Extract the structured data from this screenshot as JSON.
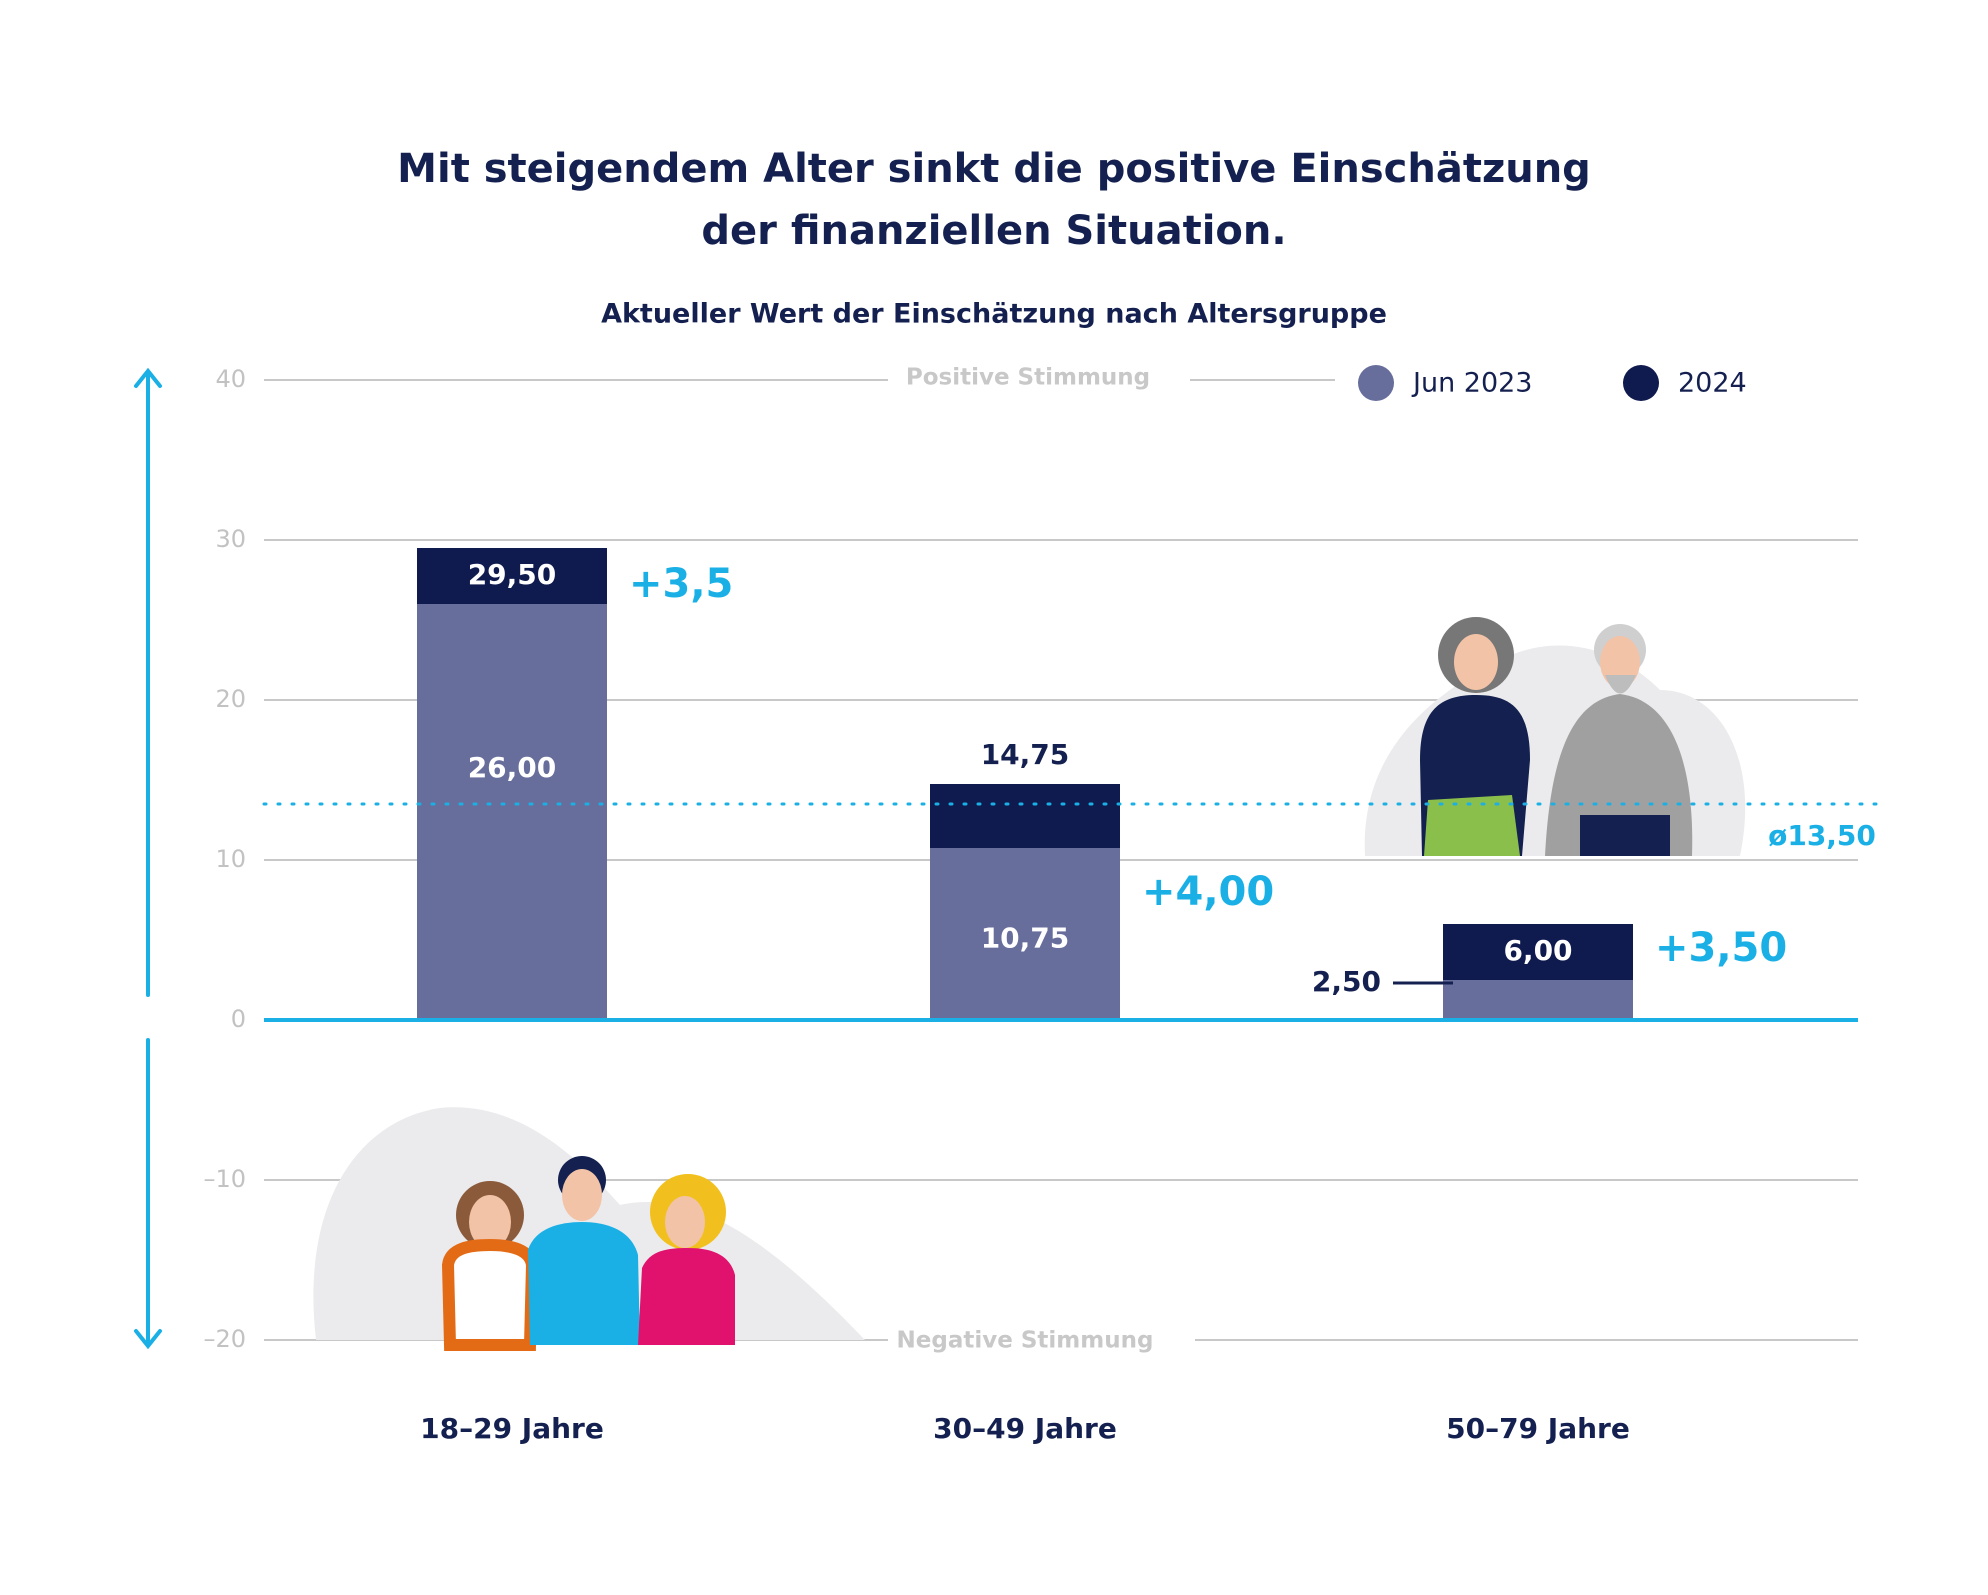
{
  "chart_data": {
    "type": "bar",
    "title": [
      "Mit steigendem Alter sinkt die positive Einschätzung",
      "der finanziellen Situation."
    ],
    "subtitle": "Aktueller Wert der Einschätzung nach Altersgruppe",
    "categories": [
      "18–29 Jahre",
      "30–49 Jahre",
      "50–79 Jahre"
    ],
    "series": [
      {
        "name": "Jun 2023",
        "color": "#676e9c",
        "values": [
          26.0,
          10.75,
          2.5
        ],
        "value_labels": [
          "26,00",
          "10,75",
          "2,50"
        ]
      },
      {
        "name": "2024",
        "color": "#0f1a4e",
        "values": [
          29.5,
          14.75,
          6.0
        ],
        "value_labels": [
          "29,50",
          "14,75",
          "6,00"
        ]
      }
    ],
    "changes": [
      "+3,5",
      "+4,00",
      "+3,50"
    ],
    "average": {
      "value": 13.5,
      "label": "ø13,50",
      "color": "#1ab0e6"
    },
    "ylim": [
      -20,
      40
    ],
    "yticks": [
      40,
      30,
      20,
      10,
      0,
      {
        "value": -10,
        "label": "–10"
      },
      {
        "value": -20,
        "label": "–20"
      }
    ],
    "annotations": {
      "positive": "Positive Stimmung",
      "negative": "Negative Stimmung"
    },
    "grid": true
  }
}
